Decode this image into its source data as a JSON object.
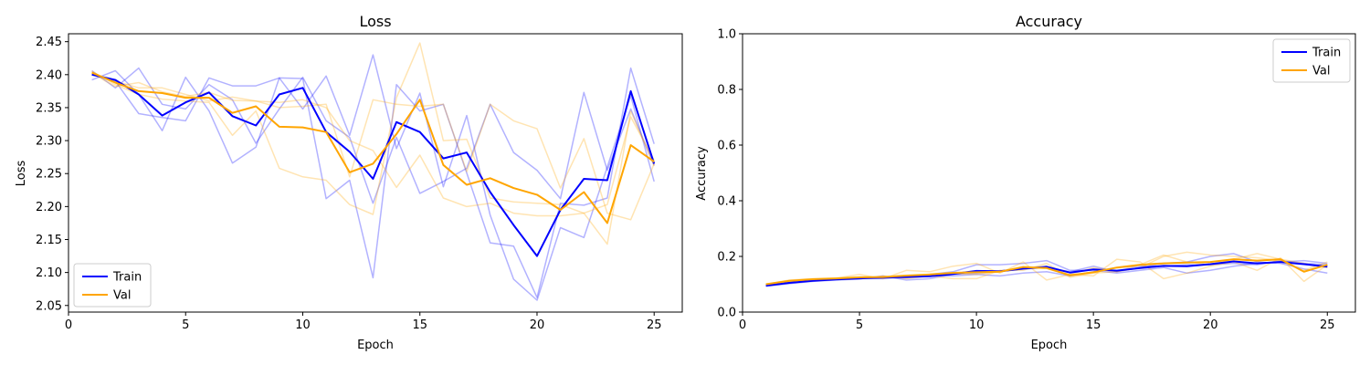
{
  "chart_data": [
    {
      "type": "line",
      "title": "Loss",
      "xlabel": "Epoch",
      "ylabel": "Loss",
      "xlim": [
        0,
        26.2
      ],
      "ylim": [
        2.04,
        2.462
      ],
      "xticks": [
        0,
        5,
        10,
        15,
        20,
        25
      ],
      "yticks": [
        2.05,
        2.1,
        2.15,
        2.2,
        2.25,
        2.3,
        2.35,
        2.4,
        2.45
      ],
      "ytick_decimals": 2,
      "legend": "bottom-left",
      "x": [
        1,
        2,
        3,
        4,
        5,
        6,
        7,
        8,
        9,
        10,
        11,
        12,
        13,
        14,
        15,
        16,
        17,
        18,
        19,
        20,
        21,
        22,
        23,
        24,
        25
      ],
      "series": [
        {
          "name": "Train",
          "color": "#0000ff",
          "values": [
            2.4,
            2.392,
            2.37,
            2.338,
            2.358,
            2.373,
            2.337,
            2.323,
            2.37,
            2.38,
            2.313,
            2.283,
            2.242,
            2.328,
            2.313,
            2.273,
            2.282,
            2.222,
            2.172,
            2.125,
            2.195,
            2.242,
            2.24,
            2.375,
            2.265
          ]
        },
        {
          "name": "Val",
          "color": "#ffa500",
          "values": [
            2.403,
            2.388,
            2.375,
            2.372,
            2.365,
            2.365,
            2.342,
            2.352,
            2.321,
            2.32,
            2.313,
            2.252,
            2.265,
            2.31,
            2.362,
            2.263,
            2.233,
            2.243,
            2.228,
            2.218,
            2.195,
            2.222,
            2.175,
            2.293,
            2.268
          ]
        }
      ],
      "runs": [
        {
          "color": "#0000ff",
          "values": [
            2.392,
            2.406,
            2.37,
            2.315,
            2.396,
            2.345,
            2.266,
            2.29,
            2.395,
            2.394,
            2.212,
            2.24,
            2.092,
            2.385,
            2.345,
            2.355,
            2.251,
            2.145,
            2.14,
            2.062,
            2.205,
            2.202,
            2.213,
            2.41,
            2.295
          ]
        },
        {
          "color": "#0000ff",
          "values": [
            2.4,
            2.39,
            2.341,
            2.335,
            2.33,
            2.395,
            2.383,
            2.383,
            2.395,
            2.348,
            2.398,
            2.308,
            2.43,
            2.288,
            2.372,
            2.23,
            2.338,
            2.187,
            2.09,
            2.058,
            2.168,
            2.153,
            2.26,
            2.368,
            2.238
          ]
        },
        {
          "color": "#0000ff",
          "values": [
            2.406,
            2.38,
            2.41,
            2.355,
            2.348,
            2.385,
            2.362,
            2.296,
            2.348,
            2.396,
            2.33,
            2.305,
            2.205,
            2.305,
            2.22,
            2.238,
            2.258,
            2.355,
            2.282,
            2.255,
            2.212,
            2.373,
            2.255,
            2.348,
            2.262
          ]
        },
        {
          "color": "#ffa500",
          "values": [
            2.405,
            2.385,
            2.37,
            2.363,
            2.36,
            2.358,
            2.308,
            2.345,
            2.258,
            2.245,
            2.24,
            2.203,
            2.188,
            2.365,
            2.448,
            2.3,
            2.302,
            2.213,
            2.207,
            2.205,
            2.203,
            2.19,
            2.143,
            2.345,
            2.262
          ]
        },
        {
          "color": "#ffa500",
          "values": [
            2.4,
            2.39,
            2.38,
            2.38,
            2.37,
            2.36,
            2.366,
            2.36,
            2.35,
            2.352,
            2.355,
            2.245,
            2.362,
            2.355,
            2.352,
            2.355,
            2.253,
            2.355,
            2.33,
            2.318,
            2.228,
            2.303,
            2.19,
            2.18,
            2.265
          ]
        },
        {
          "color": "#ffa500",
          "values": [
            2.402,
            2.382,
            2.388,
            2.374,
            2.367,
            2.373,
            2.361,
            2.36,
            2.358,
            2.362,
            2.35,
            2.3,
            2.285,
            2.229,
            2.278,
            2.213,
            2.2,
            2.205,
            2.19,
            2.186,
            2.186,
            2.19,
            2.203,
            2.336,
            2.27
          ]
        }
      ]
    },
    {
      "type": "line",
      "title": "Accuracy",
      "xlabel": "Epoch",
      "ylabel": "Accuracy",
      "xlim": [
        0,
        26.2
      ],
      "ylim": [
        0,
        1
      ],
      "xticks": [
        0,
        5,
        10,
        15,
        20,
        25
      ],
      "yticks": [
        0,
        0.2,
        0.4,
        0.6,
        0.8,
        1.0
      ],
      "ytick_decimals": 1,
      "legend": "top-right",
      "x": [
        1,
        2,
        3,
        4,
        5,
        6,
        7,
        8,
        9,
        10,
        11,
        12,
        13,
        14,
        15,
        16,
        17,
        18,
        19,
        20,
        21,
        22,
        23,
        24,
        25
      ],
      "series": [
        {
          "name": "Train",
          "color": "#0000ff",
          "values": [
            0.095,
            0.105,
            0.112,
            0.117,
            0.121,
            0.124,
            0.126,
            0.129,
            0.137,
            0.148,
            0.147,
            0.156,
            0.163,
            0.142,
            0.153,
            0.149,
            0.158,
            0.166,
            0.165,
            0.172,
            0.182,
            0.175,
            0.18,
            0.172,
            0.163
          ]
        },
        {
          "name": "Val",
          "color": "#ffa500",
          "values": [
            0.1,
            0.112,
            0.118,
            0.121,
            0.125,
            0.126,
            0.131,
            0.135,
            0.141,
            0.143,
            0.145,
            0.162,
            0.158,
            0.132,
            0.143,
            0.16,
            0.17,
            0.175,
            0.178,
            0.18,
            0.19,
            0.185,
            0.19,
            0.145,
            0.17
          ]
        }
      ],
      "runs": [
        {
          "color": "#0000ff",
          "values": [
            0.092,
            0.102,
            0.11,
            0.115,
            0.119,
            0.13,
            0.115,
            0.12,
            0.135,
            0.14,
            0.145,
            0.155,
            0.16,
            0.145,
            0.165,
            0.145,
            0.16,
            0.175,
            0.18,
            0.2,
            0.21,
            0.18,
            0.175,
            0.155,
            0.14
          ]
        },
        {
          "color": "#0000ff",
          "values": [
            0.095,
            0.105,
            0.112,
            0.118,
            0.122,
            0.12,
            0.128,
            0.135,
            0.145,
            0.17,
            0.17,
            0.175,
            0.185,
            0.15,
            0.15,
            0.14,
            0.15,
            0.16,
            0.14,
            0.15,
            0.165,
            0.175,
            0.18,
            0.185,
            0.175
          ]
        },
        {
          "color": "#0000ff",
          "values": [
            0.098,
            0.108,
            0.115,
            0.12,
            0.125,
            0.125,
            0.13,
            0.132,
            0.13,
            0.135,
            0.13,
            0.14,
            0.145,
            0.13,
            0.145,
            0.16,
            0.165,
            0.165,
            0.17,
            0.17,
            0.175,
            0.17,
            0.185,
            0.175,
            0.17
          ]
        },
        {
          "color": "#ffa500",
          "values": [
            0.1,
            0.115,
            0.12,
            0.122,
            0.135,
            0.12,
            0.15,
            0.145,
            0.165,
            0.175,
            0.14,
            0.18,
            0.115,
            0.135,
            0.13,
            0.19,
            0.18,
            0.12,
            0.14,
            0.165,
            0.18,
            0.15,
            0.195,
            0.11,
            0.17
          ]
        },
        {
          "color": "#ffa500",
          "values": [
            0.1,
            0.11,
            0.115,
            0.12,
            0.12,
            0.13,
            0.12,
            0.13,
            0.12,
            0.12,
            0.15,
            0.15,
            0.175,
            0.125,
            0.14,
            0.145,
            0.16,
            0.2,
            0.215,
            0.205,
            0.2,
            0.195,
            0.185,
            0.15,
            0.18
          ]
        },
        {
          "color": "#ffa500",
          "values": [
            0.1,
            0.11,
            0.118,
            0.121,
            0.122,
            0.128,
            0.123,
            0.13,
            0.138,
            0.135,
            0.145,
            0.155,
            0.16,
            0.135,
            0.16,
            0.145,
            0.17,
            0.205,
            0.18,
            0.17,
            0.19,
            0.21,
            0.19,
            0.175,
            0.16
          ]
        }
      ]
    }
  ]
}
